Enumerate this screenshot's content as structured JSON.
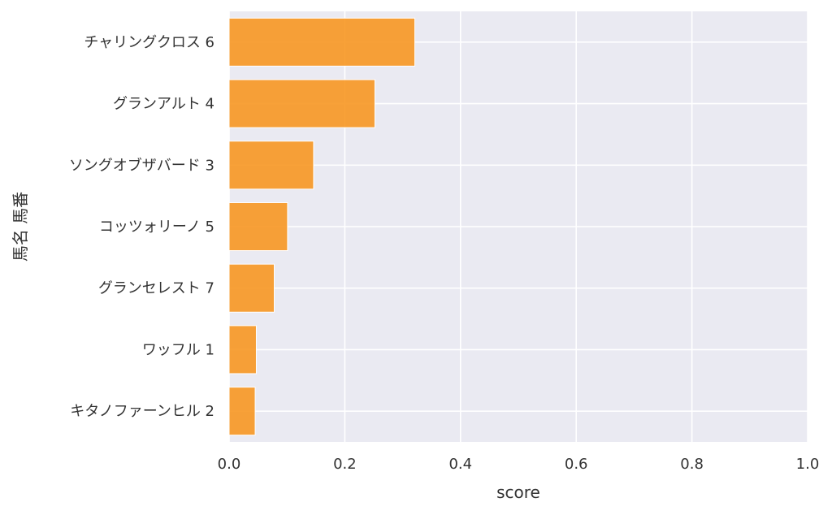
{
  "chart_data": {
    "type": "bar",
    "orientation": "horizontal",
    "categories": [
      "チャリングクロス 6",
      "グランアルト 4",
      "ソングオブザバード 3",
      "コッツォリーノ 5",
      "グランセレスト 7",
      "ワッフル 1",
      "キタノファーンヒル 2"
    ],
    "values": [
      0.321,
      0.252,
      0.146,
      0.101,
      0.078,
      0.047,
      0.045
    ],
    "xlabel": "score",
    "ylabel": "馬名 馬番",
    "xlim": [
      0,
      1.0
    ],
    "xticks": [
      "0.0",
      "0.2",
      "0.4",
      "0.6",
      "0.8",
      "1.0"
    ],
    "grid": true,
    "colors": {
      "bar": "#f7941d",
      "plot_background": "#eaeaf2",
      "grid": "#ffffff"
    }
  }
}
